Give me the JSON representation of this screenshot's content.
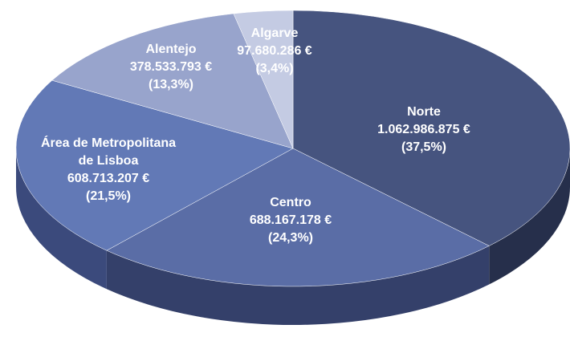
{
  "chart_data": {
    "type": "pie",
    "categories": [
      "Norte",
      "Centro",
      "Área de Metropolitana de Lisboa",
      "Alentejo",
      "Algarve"
    ],
    "values": [
      1062986875,
      688167178,
      608713207,
      378533793,
      97680286
    ],
    "value_labels": [
      "1.062.986.875 €",
      "688.167.178 €",
      "608.713.207 €",
      "378.533.793 €",
      "97.680.286 €"
    ],
    "percentages": [
      37.5,
      24.3,
      21.5,
      13.3,
      3.4
    ],
    "percentage_labels": [
      "(37,5%)",
      "(24,3%)",
      "(21,5%)",
      "(13,3%)",
      "(3,4%)"
    ],
    "colors": [
      "#46547f",
      "#5a6da6",
      "#6279b6",
      "#98a4cc",
      "#c4cbe3"
    ],
    "side_colors": [
      "#262f4b",
      "#34406a",
      "#3b4a7c",
      "#6a77a2",
      "#939cbe"
    ]
  }
}
